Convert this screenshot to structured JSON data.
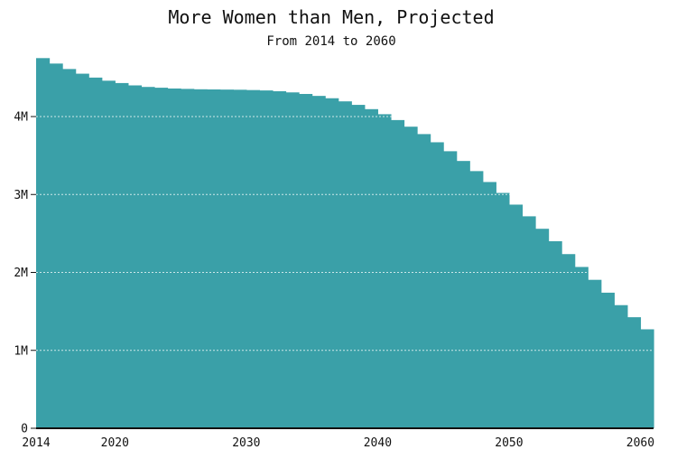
{
  "chart_data": {
    "type": "area",
    "step": true,
    "title": "More Women than Men, Projected",
    "subtitle": "From 2014 to 2060",
    "xlabel": "",
    "ylabel": "",
    "xlim": [
      2014,
      2061
    ],
    "ylim": [
      0,
      4800000
    ],
    "grid": true,
    "color": "#3aa0a8",
    "x_ticks": [
      "2014",
      "2020",
      "2030",
      "2040",
      "2050",
      "2060"
    ],
    "y_ticks": [
      "0",
      "1M",
      "2M",
      "3M",
      "4M"
    ],
    "x": [
      2014,
      2015,
      2016,
      2017,
      2018,
      2019,
      2020,
      2021,
      2022,
      2023,
      2024,
      2025,
      2026,
      2027,
      2028,
      2029,
      2030,
      2031,
      2032,
      2033,
      2034,
      2035,
      2036,
      2037,
      2038,
      2039,
      2040,
      2041,
      2042,
      2043,
      2044,
      2045,
      2046,
      2047,
      2048,
      2049,
      2050,
      2051,
      2052,
      2053,
      2054,
      2055,
      2056,
      2057,
      2058,
      2059,
      2060
    ],
    "values": [
      4750000,
      4680000,
      4610000,
      4550000,
      4500000,
      4460000,
      4430000,
      4400000,
      4380000,
      4370000,
      4360000,
      4355000,
      4350000,
      4348000,
      4346000,
      4344000,
      4340000,
      4335000,
      4325000,
      4310000,
      4290000,
      4265000,
      4235000,
      4195000,
      4150000,
      4095000,
      4030000,
      3955000,
      3870000,
      3775000,
      3670000,
      3555000,
      3430000,
      3300000,
      3160000,
      3020000,
      2870000,
      2720000,
      2560000,
      2400000,
      2235000,
      2070000,
      1905000,
      1740000,
      1580000,
      1425000,
      1270000
    ]
  }
}
